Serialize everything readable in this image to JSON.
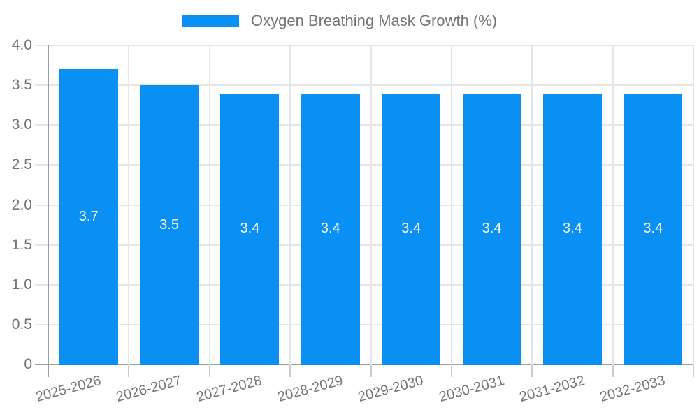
{
  "chart_data": {
    "type": "bar",
    "title": "",
    "legend": {
      "label": "Oxygen Breathing Mask Growth (%)",
      "position": "top"
    },
    "categories": [
      "2025-2026",
      "2026-2027",
      "2027-2028",
      "2028-2029",
      "2029-2030",
      "2030-2031",
      "2031-2032",
      "2032-2033"
    ],
    "series": [
      {
        "name": "Oxygen Breathing Mask Growth (%)",
        "values": [
          3.7,
          3.5,
          3.4,
          3.4,
          3.4,
          3.4,
          3.4,
          3.4
        ]
      }
    ],
    "value_labels": [
      "3.7",
      "3.5",
      "3.4",
      "3.4",
      "3.4",
      "3.4",
      "3.4",
      "3.4"
    ],
    "xlabel": "",
    "ylabel": "",
    "ylim": [
      0,
      4
    ],
    "yticks": [
      {
        "value": 4.0,
        "label": "4.0"
      },
      {
        "value": 3.5,
        "label": "3.5"
      },
      {
        "value": 3.0,
        "label": "3.0"
      },
      {
        "value": 2.5,
        "label": "2.5"
      },
      {
        "value": 2.0,
        "label": "2.0"
      },
      {
        "value": 1.5,
        "label": "1.5"
      },
      {
        "value": 1.0,
        "label": "1.0"
      },
      {
        "value": 0.5,
        "label": "0.5"
      },
      {
        "value": 0,
        "label": "0"
      }
    ],
    "grid": true,
    "x_label_rotation_deg": -15,
    "colors": {
      "bar": "#0a8ff2",
      "bar_value_text": "#ffffff",
      "axis_text": "#757575",
      "gridline": "#e6e6e6",
      "axis_line": "#9e9e9e",
      "below_axis_tick": "#cccccc",
      "background": "#ffffff"
    }
  }
}
